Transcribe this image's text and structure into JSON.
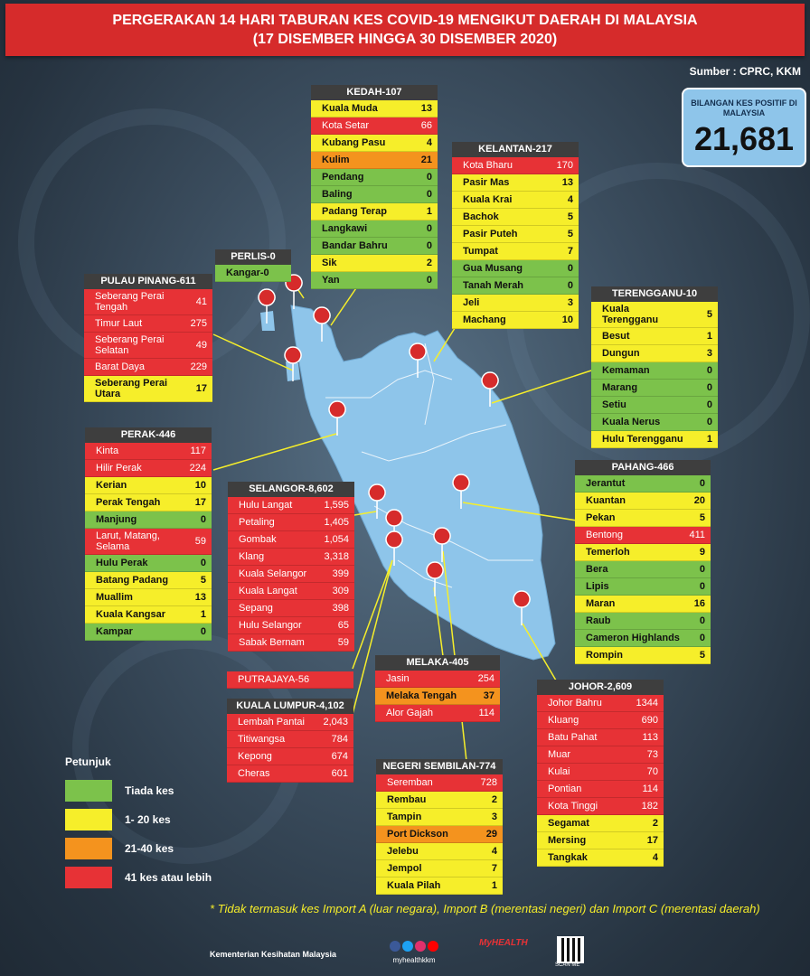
{
  "title_line1": "PERGERAKAN 14 HARI TABURAN KES COVID-19 MENGIKUT DAERAH DI MALAYSIA",
  "title_line2": "(17 DISEMBER HINGGA 30 DISEMBER 2020)",
  "source": "Sumber : CPRC, KKM",
  "total": {
    "label": "BILANGAN KES POSITIF DI MALAYSIA",
    "value": "21,681"
  },
  "colors": {
    "red": "#e73236",
    "yellow": "#f6ee2a",
    "green": "#7cc24b",
    "orange": "#f4931e",
    "map": "#8ec5ea"
  },
  "states": [
    {
      "key": "kedah",
      "title": "KEDAH-107",
      "rows": [
        {
          "name": "Kuala Muda",
          "value": "13",
          "level": "y"
        },
        {
          "name": "Kota Setar",
          "value": "66",
          "level": "r"
        },
        {
          "name": "Kubang Pasu",
          "value": "4",
          "level": "y"
        },
        {
          "name": "Kulim",
          "value": "21",
          "level": "o"
        },
        {
          "name": "Pendang",
          "value": "0",
          "level": "g"
        },
        {
          "name": "Baling",
          "value": "0",
          "level": "g"
        },
        {
          "name": "Padang Terap",
          "value": "1",
          "level": "y"
        },
        {
          "name": "Langkawi",
          "value": "0",
          "level": "g"
        },
        {
          "name": "Bandar Bahru",
          "value": "0",
          "level": "g"
        },
        {
          "name": "Sik",
          "value": "2",
          "level": "y"
        },
        {
          "name": "Yan",
          "value": "0",
          "level": "g"
        }
      ]
    },
    {
      "key": "kelantan",
      "title": "KELANTAN-217",
      "rows": [
        {
          "name": "Kota Bharu",
          "value": "170",
          "level": "r"
        },
        {
          "name": "Pasir Mas",
          "value": "13",
          "level": "y"
        },
        {
          "name": "Kuala Krai",
          "value": "4",
          "level": "y"
        },
        {
          "name": "Bachok",
          "value": "5",
          "level": "y"
        },
        {
          "name": "Pasir Puteh",
          "value": "5",
          "level": "y"
        },
        {
          "name": "Tumpat",
          "value": "7",
          "level": "y"
        },
        {
          "name": "Gua Musang",
          "value": "0",
          "level": "g"
        },
        {
          "name": "Tanah Merah",
          "value": "0",
          "level": "g"
        },
        {
          "name": "Jeli",
          "value": "3",
          "level": "y"
        },
        {
          "name": "Machang",
          "value": "10",
          "level": "y"
        }
      ]
    },
    {
      "key": "perlis",
      "title": "PERLIS-0",
      "rows": [
        {
          "name": "Kangar-0",
          "value": "",
          "level": "g"
        }
      ]
    },
    {
      "key": "penang",
      "title": "PULAU PINANG-611",
      "rows": [
        {
          "name": "Seberang Perai Tengah",
          "value": "41",
          "level": "r",
          "tall": true
        },
        {
          "name": "Timur Laut",
          "value": "275",
          "level": "r"
        },
        {
          "name": "Seberang Perai Selatan",
          "value": "49",
          "level": "r",
          "tall": true
        },
        {
          "name": "Barat Daya",
          "value": "229",
          "level": "r"
        },
        {
          "name": "Seberang Perai Utara",
          "value": "17",
          "level": "y",
          "tall": true
        }
      ]
    },
    {
      "key": "terengganu",
      "title": "TERENGGANU-10",
      "rows": [
        {
          "name": "Kuala Terengganu",
          "value": "5",
          "level": "y",
          "tall": true
        },
        {
          "name": "Besut",
          "value": "1",
          "level": "y"
        },
        {
          "name": "Dungun",
          "value": "3",
          "level": "y"
        },
        {
          "name": "Kemaman",
          "value": "0",
          "level": "g"
        },
        {
          "name": "Marang",
          "value": "0",
          "level": "g"
        },
        {
          "name": "Setiu",
          "value": "0",
          "level": "g"
        },
        {
          "name": "Kuala Nerus",
          "value": "0",
          "level": "g"
        },
        {
          "name": "Hulu Terengganu",
          "value": "1",
          "level": "y"
        }
      ]
    },
    {
      "key": "perak",
      "title": "PERAK-446",
      "rows": [
        {
          "name": "Kinta",
          "value": "117",
          "level": "r"
        },
        {
          "name": "Hilir Perak",
          "value": "224",
          "level": "r"
        },
        {
          "name": "Kerian",
          "value": "10",
          "level": "y"
        },
        {
          "name": "Perak Tengah",
          "value": "17",
          "level": "y"
        },
        {
          "name": "Manjung",
          "value": "0",
          "level": "g"
        },
        {
          "name": "Larut, Matang, Selama",
          "value": "59",
          "level": "r",
          "tall": true
        },
        {
          "name": "Hulu Perak",
          "value": "0",
          "level": "g"
        },
        {
          "name": "Batang Padang",
          "value": "5",
          "level": "y"
        },
        {
          "name": "Muallim",
          "value": "13",
          "level": "y"
        },
        {
          "name": "Kuala Kangsar",
          "value": "1",
          "level": "y"
        },
        {
          "name": "Kampar",
          "value": "0",
          "level": "g"
        }
      ]
    },
    {
      "key": "selangor",
      "title": "SELANGOR-8,602",
      "rows": [
        {
          "name": "Hulu Langat",
          "value": "1,595",
          "level": "r"
        },
        {
          "name": "Petaling",
          "value": "1,405",
          "level": "r"
        },
        {
          "name": "Gombak",
          "value": "1,054",
          "level": "r"
        },
        {
          "name": "Klang",
          "value": "3,318",
          "level": "r"
        },
        {
          "name": "Kuala Selangor",
          "value": "399",
          "level": "r"
        },
        {
          "name": "Kuala Langat",
          "value": "309",
          "level": "r"
        },
        {
          "name": "Sepang",
          "value": "398",
          "level": "r"
        },
        {
          "name": "Hulu Selangor",
          "value": "65",
          "level": "r"
        },
        {
          "name": "Sabak Bernam",
          "value": "59",
          "level": "r"
        }
      ]
    },
    {
      "key": "pahang",
      "title": "PAHANG-466",
      "rows": [
        {
          "name": "Jerantut",
          "value": "0",
          "level": "g"
        },
        {
          "name": "Kuantan",
          "value": "20",
          "level": "y"
        },
        {
          "name": "Pekan",
          "value": "5",
          "level": "y"
        },
        {
          "name": "Bentong",
          "value": "411",
          "level": "r"
        },
        {
          "name": "Temerloh",
          "value": "9",
          "level": "y"
        },
        {
          "name": "Bera",
          "value": "0",
          "level": "g"
        },
        {
          "name": "Lipis",
          "value": "0",
          "level": "g"
        },
        {
          "name": "Maran",
          "value": "16",
          "level": "y"
        },
        {
          "name": "Raub",
          "value": "0",
          "level": "g"
        },
        {
          "name": "Cameron Highlands",
          "value": "0",
          "level": "g"
        },
        {
          "name": "Rompin",
          "value": "5",
          "level": "y"
        }
      ]
    },
    {
      "key": "putrajaya",
      "title": "",
      "rows": [
        {
          "name": "PUTRAJAYA-56",
          "value": "",
          "level": "r"
        }
      ]
    },
    {
      "key": "melaka",
      "title": "MELAKA-405",
      "rows": [
        {
          "name": "Jasin",
          "value": "254",
          "level": "r"
        },
        {
          "name": "Melaka Tengah",
          "value": "37",
          "level": "o"
        },
        {
          "name": "Alor Gajah",
          "value": "114",
          "level": "r"
        }
      ]
    },
    {
      "key": "johor",
      "title": "JOHOR-2,609",
      "rows": [
        {
          "name": "Johor Bahru",
          "value": "1344",
          "level": "r"
        },
        {
          "name": "Kluang",
          "value": "690",
          "level": "r"
        },
        {
          "name": "Batu Pahat",
          "value": "113",
          "level": "r"
        },
        {
          "name": "Muar",
          "value": "73",
          "level": "r"
        },
        {
          "name": "Kulai",
          "value": "70",
          "level": "r"
        },
        {
          "name": "Pontian",
          "value": "114",
          "level": "r"
        },
        {
          "name": "Kota Tinggi",
          "value": "182",
          "level": "r"
        },
        {
          "name": "Segamat",
          "value": "2",
          "level": "y"
        },
        {
          "name": "Mersing",
          "value": "17",
          "level": "y"
        },
        {
          "name": "Tangkak",
          "value": "4",
          "level": "y"
        }
      ]
    },
    {
      "key": "kl",
      "title": "KUALA LUMPUR-4,102",
      "rows": [
        {
          "name": "Lembah Pantai",
          "value": "2,043",
          "level": "r"
        },
        {
          "name": "Titiwangsa",
          "value": "784",
          "level": "r"
        },
        {
          "name": "Kepong",
          "value": "674",
          "level": "r"
        },
        {
          "name": "Cheras",
          "value": "601",
          "level": "r"
        }
      ]
    },
    {
      "key": "ns",
      "title": "NEGERI SEMBILAN-774",
      "rows": [
        {
          "name": "Seremban",
          "value": "728",
          "level": "r"
        },
        {
          "name": "Rembau",
          "value": "2",
          "level": "y"
        },
        {
          "name": "Tampin",
          "value": "3",
          "level": "y"
        },
        {
          "name": "Port Dickson",
          "value": "29",
          "level": "o"
        },
        {
          "name": "Jelebu",
          "value": "4",
          "level": "y"
        },
        {
          "name": "Jempol",
          "value": "7",
          "level": "y"
        },
        {
          "name": "Kuala Pilah",
          "value": "1",
          "level": "y"
        }
      ]
    }
  ],
  "legend": {
    "title": "Petunjuk",
    "items": [
      {
        "label": "Tiada kes",
        "color": "#7cc24b"
      },
      {
        "label": "1- 20 kes",
        "color": "#f6ee2a"
      },
      {
        "label": "21-40 kes",
        "color": "#f4931e"
      },
      {
        "label": "41 kes atau lebih",
        "color": "#e73236"
      }
    ]
  },
  "note": "* Tidak termasuk kes Import A (luar negara),  Import B (merentasi negeri) dan Import C (merentasi daerah)",
  "footer": {
    "ministry": "Kementerian Kesihatan Malaysia",
    "handle": "myhealthkkm",
    "logo": "MyHEALTH",
    "qr_label": "SCAN ME"
  }
}
